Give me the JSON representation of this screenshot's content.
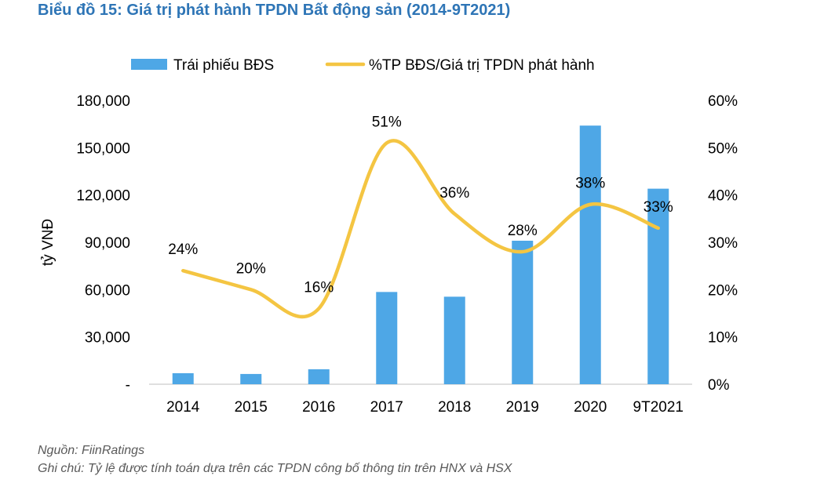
{
  "title": "Biểu đồ 15: Giá trị phát hành TPDN Bất động sản (2014-9T2021)",
  "source": "Nguồn: FiinRatings",
  "note": "Ghi chú: Tỷ lệ được tính toán dựa trên các TPDN công bố thông tin trên HNX và HSX",
  "colors": {
    "bar": "#4ea7e6",
    "line": "#f4c542",
    "title": "#2e75b6"
  },
  "chart_data": {
    "type": "bar",
    "categories": [
      "2014",
      "2015",
      "2016",
      "2017",
      "2018",
      "2019",
      "2020",
      "9T2021"
    ],
    "series": [
      {
        "name": "Trái phiếu BĐS",
        "type": "bar",
        "axis": "left",
        "values": [
          7000,
          6500,
          9500,
          58500,
          55500,
          91000,
          164000,
          124000
        ]
      },
      {
        "name": "%TP BĐS/Giá trị TPDN phát hành",
        "type": "line",
        "axis": "right",
        "values": [
          24,
          20,
          16,
          51,
          36,
          28,
          38,
          33
        ],
        "labels": [
          "24%",
          "20%",
          "16%",
          "51%",
          "36%",
          "28%",
          "38%",
          "33%"
        ]
      }
    ],
    "ylabel": "tỷ VNĐ",
    "ylim": [
      0,
      180000
    ],
    "y2lim": [
      0,
      60
    ],
    "yticks": [
      "-",
      "30,000",
      "60,000",
      "90,000",
      "120,000",
      "150,000",
      "180,000"
    ],
    "y2ticks": [
      "0%",
      "10%",
      "20%",
      "30%",
      "40%",
      "50%",
      "60%"
    ],
    "legend": "top",
    "grid": false
  }
}
